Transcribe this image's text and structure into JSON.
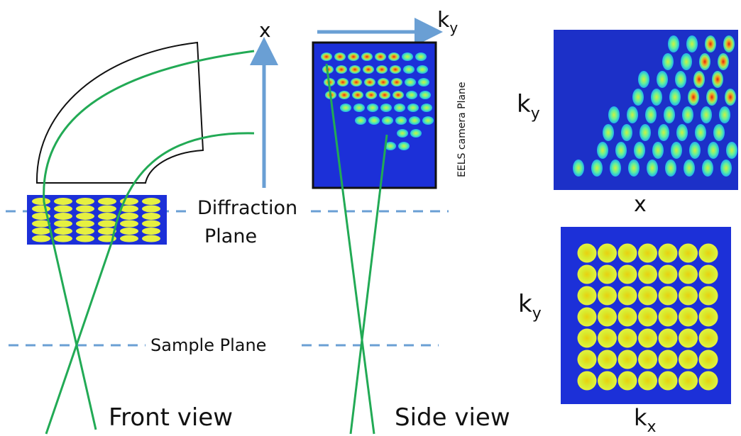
{
  "labels": {
    "front_x": "x",
    "top_ky": {
      "base": "k",
      "sub": "y"
    },
    "eels": "EELS camera Plane",
    "diffraction": [
      "Diffraction",
      "Plane"
    ],
    "sample": "Sample Plane",
    "front_view": "Front view",
    "side_view": "Side view",
    "map_top_ky": {
      "base": "k",
      "sub": "y"
    },
    "map_top_x": "x",
    "map_bottom_ky": {
      "base": "k",
      "sub": "y"
    },
    "map_bottom_kx": {
      "base": "k",
      "sub": "x"
    }
  }
}
